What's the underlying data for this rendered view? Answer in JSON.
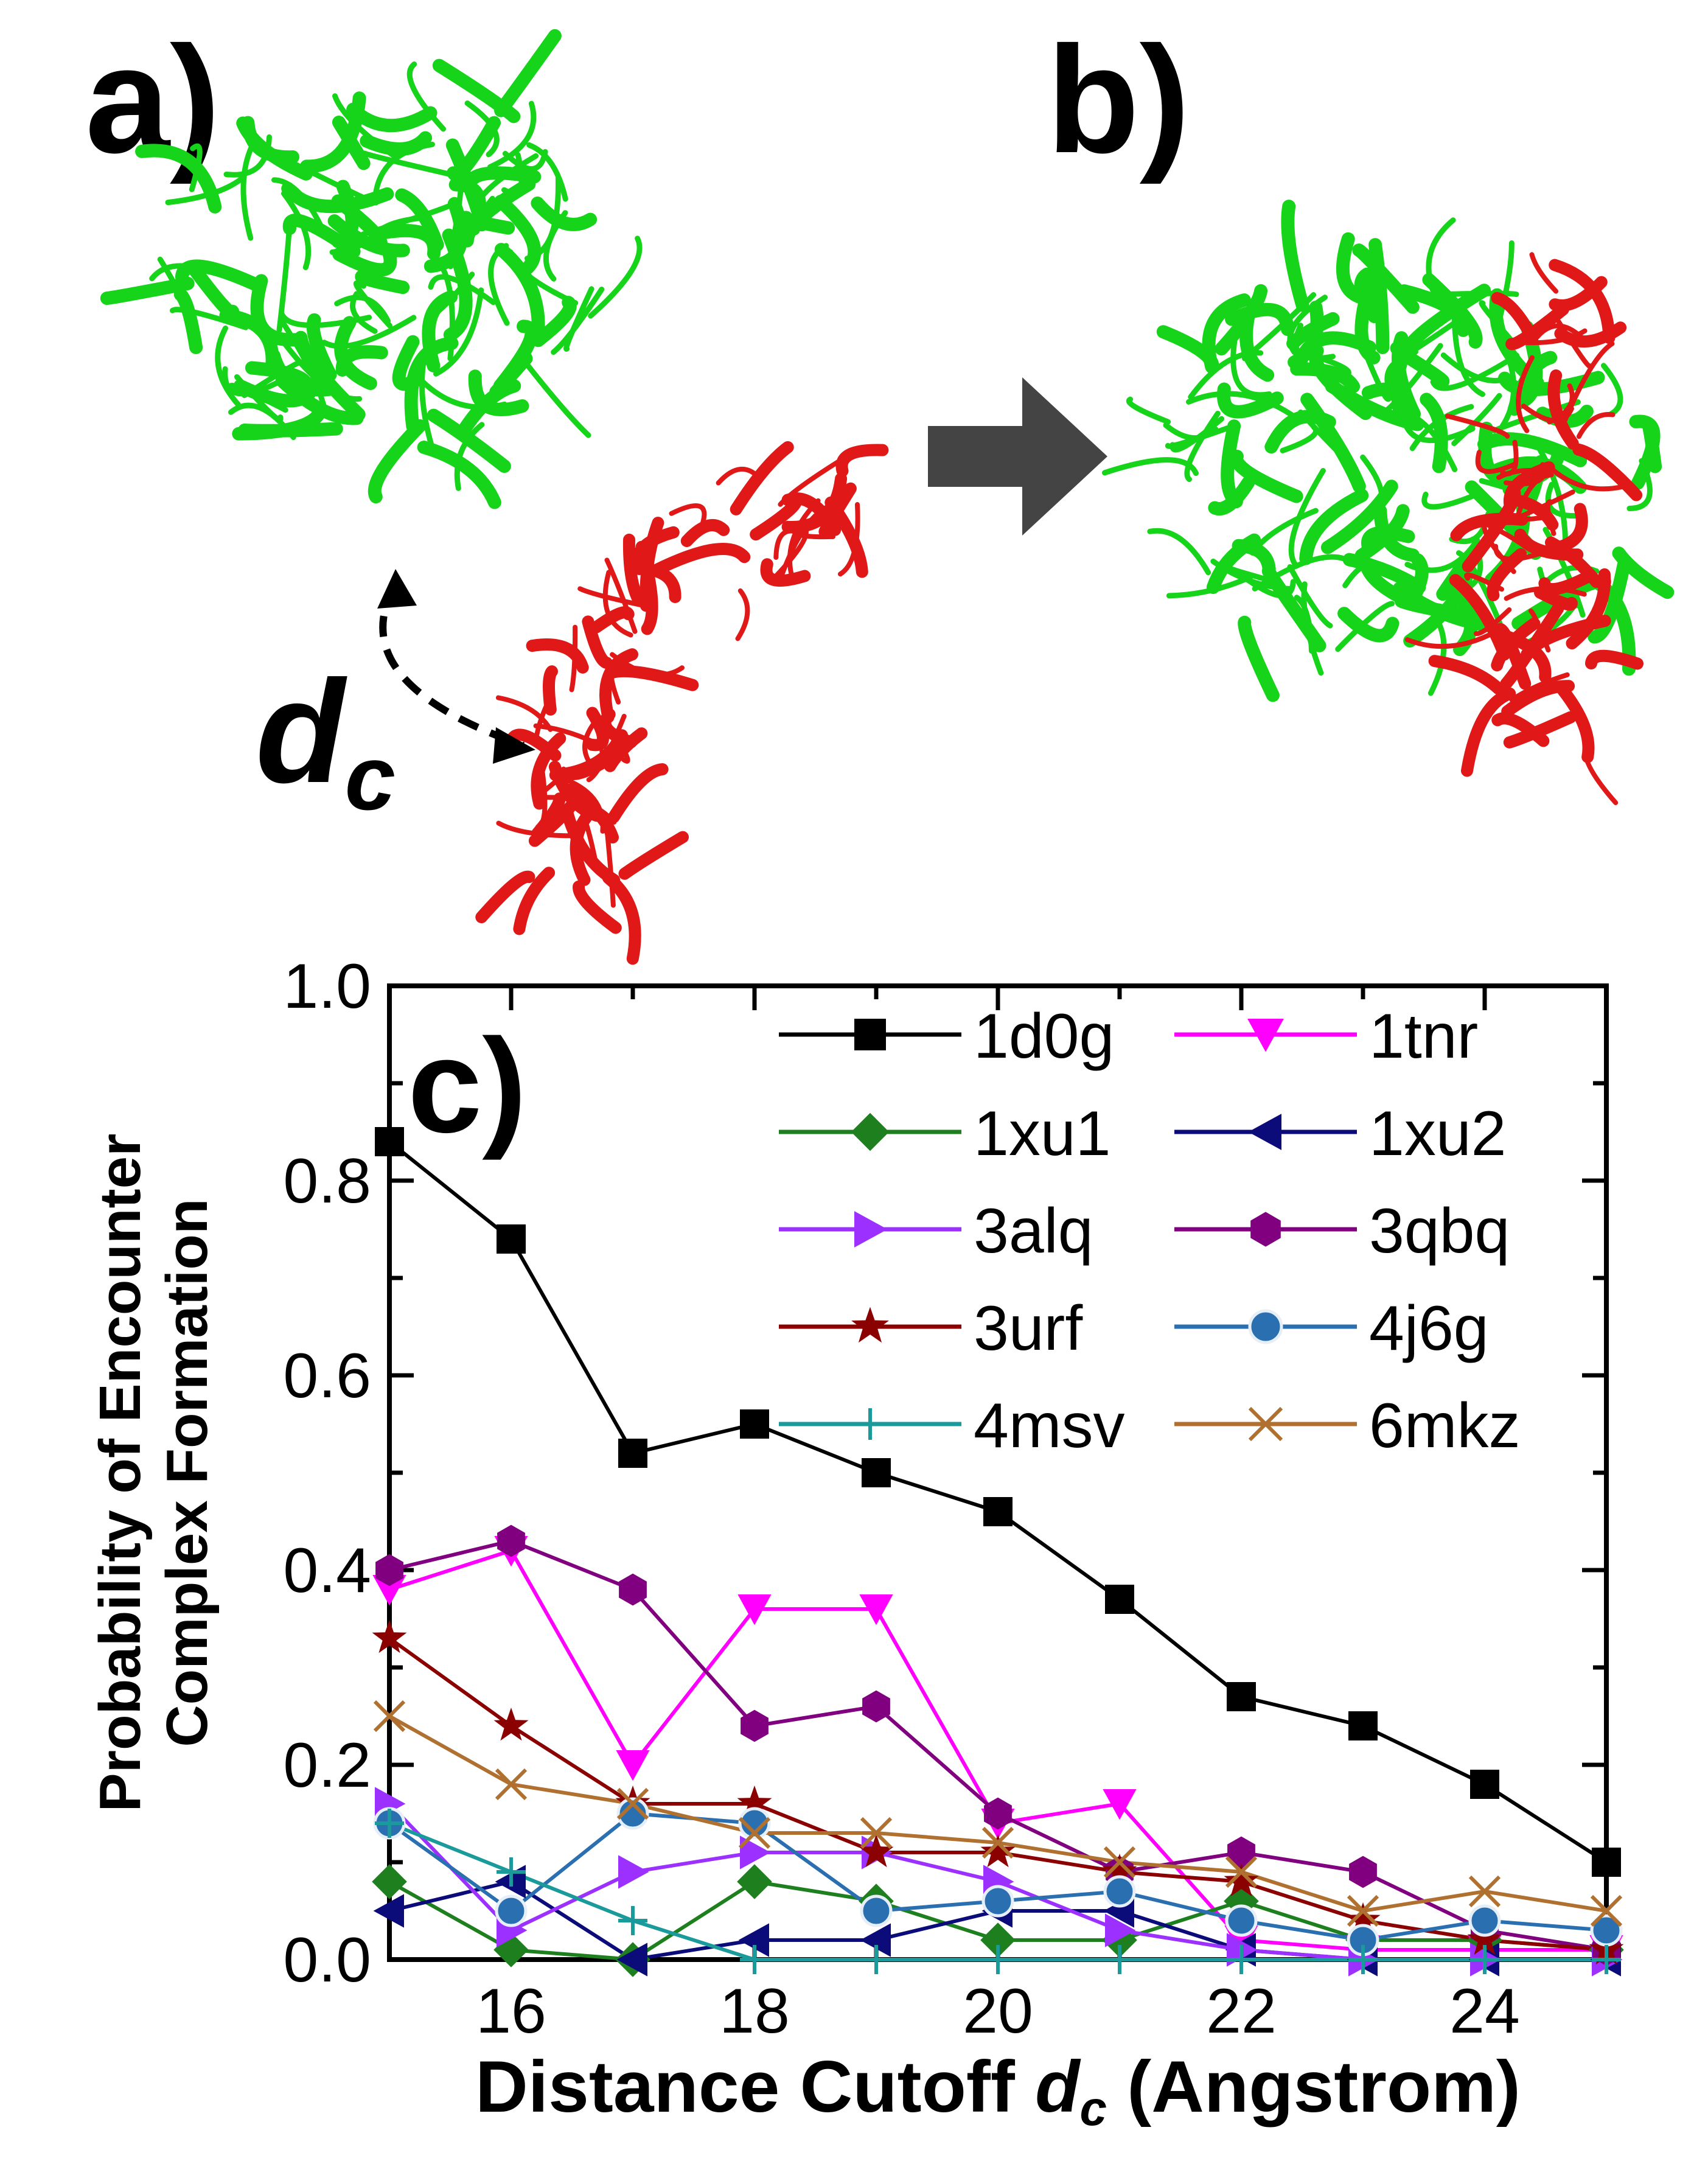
{
  "panels": {
    "a": "a)",
    "b": "b)",
    "c": "c)"
  },
  "annotation": {
    "dc_main": "d",
    "dc_sub": "c"
  },
  "colors": {
    "receptor": "#16d41a",
    "ligand": "#e01818",
    "arrow": "#444444"
  },
  "chart_data": {
    "type": "line",
    "xlabel_prefix": "Distance Cutoff ",
    "xlabel_var": "d",
    "xlabel_sub": "c",
    "xlabel_suffix": " (Angstrom)",
    "ylabel_line1": "Probability of Encounter",
    "ylabel_line2": "Complex Formation",
    "xlim": [
      15,
      25
    ],
    "ylim": [
      0.0,
      1.0
    ],
    "xticks": [
      16,
      18,
      20,
      22,
      24
    ],
    "yticks": [
      0.0,
      0.2,
      0.4,
      0.6,
      0.8,
      1.0
    ],
    "ytick_labels": [
      "0.0",
      "0.2",
      "0.4",
      "0.6",
      "0.8",
      "1.0"
    ],
    "legend_position": "top-right",
    "x": [
      15,
      16,
      17,
      18,
      19,
      20,
      21,
      22,
      23,
      24,
      25
    ],
    "series": [
      {
        "name": "1d0g",
        "color": "#000000",
        "marker": "square",
        "values": [
          0.84,
          0.74,
          0.52,
          0.55,
          0.5,
          0.46,
          0.37,
          0.27,
          0.24,
          0.18,
          0.1
        ]
      },
      {
        "name": "1tnr",
        "color": "#ff00ff",
        "marker": "triangle-down",
        "values": [
          0.38,
          0.42,
          0.2,
          0.36,
          0.36,
          0.14,
          0.16,
          0.02,
          0.01,
          0.01,
          0.01
        ]
      },
      {
        "name": "1xu1",
        "color": "#1e7f1e",
        "marker": "diamond",
        "values": [
          0.08,
          0.01,
          0.0,
          0.08,
          0.06,
          0.02,
          0.02,
          0.06,
          0.02,
          0.02,
          0.01
        ]
      },
      {
        "name": "1xu2",
        "color": "#0b0b7a",
        "marker": "triangle-left",
        "values": [
          0.05,
          0.08,
          0.0,
          0.02,
          0.02,
          0.05,
          0.05,
          0.01,
          0.0,
          0.0,
          0.0
        ]
      },
      {
        "name": "3alq",
        "color": "#9b30ff",
        "marker": "triangle-right",
        "values": [
          0.16,
          0.03,
          0.09,
          0.11,
          0.11,
          0.08,
          0.03,
          0.01,
          0.0,
          0.0,
          0.0
        ]
      },
      {
        "name": "3qbq",
        "color": "#800080",
        "marker": "hexagon",
        "values": [
          0.4,
          0.43,
          0.38,
          0.24,
          0.26,
          0.15,
          0.09,
          0.11,
          0.09,
          0.03,
          0.01
        ]
      },
      {
        "name": "3urf",
        "color": "#8b0000",
        "marker": "star",
        "values": [
          0.33,
          0.24,
          0.16,
          0.16,
          0.11,
          0.11,
          0.09,
          0.08,
          0.04,
          0.02,
          0.01
        ]
      },
      {
        "name": "4j6g",
        "color": "#2a6fb0",
        "marker": "sphere",
        "values": [
          0.14,
          0.05,
          0.15,
          0.14,
          0.05,
          0.06,
          0.07,
          0.04,
          0.02,
          0.04,
          0.03
        ]
      },
      {
        "name": "4msv",
        "color": "#1a9a9a",
        "marker": "plus",
        "values": [
          0.14,
          0.09,
          0.04,
          0.0,
          0.0,
          0.0,
          0.0,
          0.0,
          0.0,
          0.0,
          0.0
        ]
      },
      {
        "name": "6mkz",
        "color": "#b07030",
        "marker": "x",
        "values": [
          0.25,
          0.18,
          0.16,
          0.13,
          0.13,
          0.12,
          0.1,
          0.09,
          0.05,
          0.07,
          0.05
        ]
      }
    ]
  }
}
